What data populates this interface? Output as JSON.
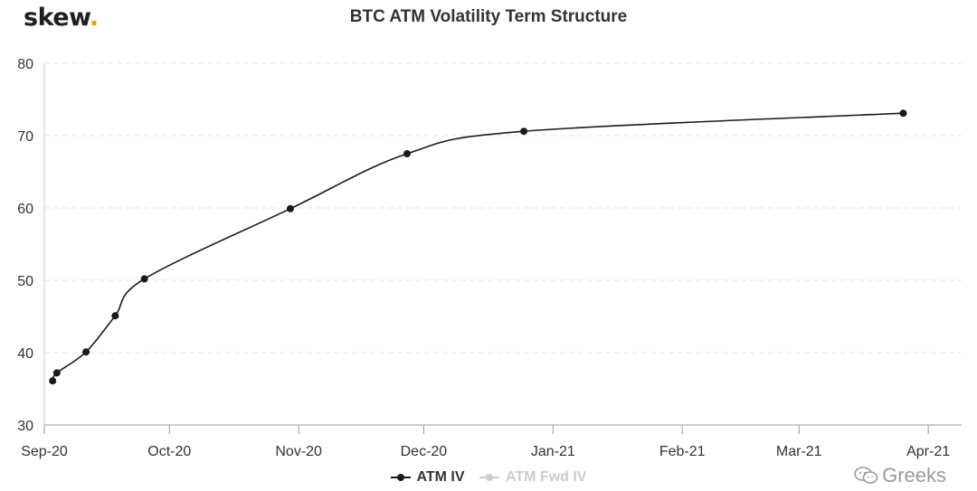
{
  "brand": {
    "name": "skew",
    "dot": "."
  },
  "watermark": {
    "text": "Greeks",
    "icon": "wechat-icon"
  },
  "colors": {
    "series": "#1a1a1a",
    "inactive": "#cccccc",
    "grid": "#e6e6e6",
    "brand_dot": "#e7a500"
  },
  "chart_data": {
    "type": "line",
    "title": "BTC ATM Volatility Term Structure",
    "xlabel": "",
    "ylabel": "",
    "ylim": [
      30,
      80
    ],
    "yticks": [
      30,
      40,
      50,
      60,
      70,
      80
    ],
    "xlim": [
      "2020-09-01",
      "2021-04-09"
    ],
    "xticks": [
      {
        "date": "2020-09-01",
        "label": "Sep-20"
      },
      {
        "date": "2020-10-01",
        "label": "Oct-20"
      },
      {
        "date": "2020-11-01",
        "label": "Nov-20"
      },
      {
        "date": "2020-12-01",
        "label": "Dec-20"
      },
      {
        "date": "2021-01-01",
        "label": "Jan-21"
      },
      {
        "date": "2021-02-01",
        "label": "Feb-21"
      },
      {
        "date": "2021-03-01",
        "label": "Mar-21"
      },
      {
        "date": "2021-04-01",
        "label": "Apr-21"
      }
    ],
    "grid": "horizontal dashed",
    "legend_position": "bottom-center",
    "series": [
      {
        "name": "ATM IV",
        "visible": true,
        "points": [
          {
            "x": "2020-09-03",
            "y": 36.1
          },
          {
            "x": "2020-09-04",
            "y": 37.2
          },
          {
            "x": "2020-09-11",
            "y": 40.1
          },
          {
            "x": "2020-09-18",
            "y": 45.1
          },
          {
            "x": "2020-09-25",
            "y": 50.2
          },
          {
            "x": "2020-10-30",
            "y": 59.9
          },
          {
            "x": "2020-11-27",
            "y": 67.5
          },
          {
            "x": "2020-12-25",
            "y": 70.6
          },
          {
            "x": "2021-03-26",
            "y": 73.1
          }
        ]
      },
      {
        "name": "ATM Fwd IV",
        "visible": false,
        "points": []
      }
    ]
  }
}
